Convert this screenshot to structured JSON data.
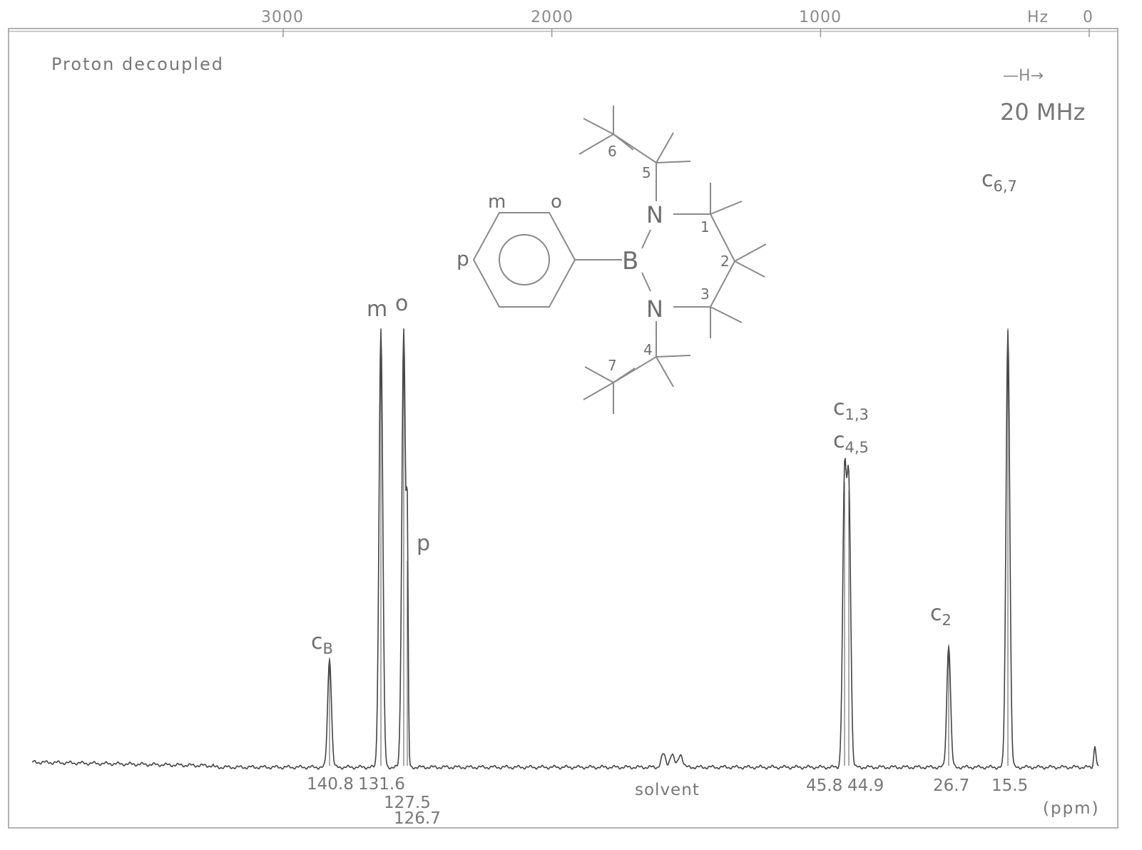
{
  "annotation_left": "Proton decoupled",
  "field_label": "20 MHz",
  "field_arrow": "—H→",
  "solvent_label": "solvent",
  "ppm_unit": "(ppm)",
  "hz_unit": "Hz",
  "chart_data": {
    "type": "line",
    "title": "",
    "top_axis": {
      "label": "Hz",
      "ticks": [
        3000,
        2000,
        1000,
        0
      ],
      "range": [
        3000,
        0
      ]
    },
    "x_unit": "(ppm)",
    "peaks": [
      {
        "name": "C_B",
        "label": "c",
        "sub": "B",
        "ppm": 140.8,
        "ppm_label": "140.8",
        "intensity": 0.25
      },
      {
        "name": "m",
        "label": "m",
        "sub": "",
        "ppm": 131.6,
        "ppm_label": "131.6",
        "intensity": 1.0
      },
      {
        "name": "o",
        "label": "o",
        "sub": "",
        "ppm": 127.5,
        "ppm_label": "127.5",
        "intensity": 1.0
      },
      {
        "name": "p",
        "label": "p",
        "sub": "",
        "ppm": 126.7,
        "ppm_label": "126.7",
        "intensity": 0.47
      },
      {
        "name": "C_1,3",
        "label": "c",
        "sub": "1,3",
        "ppm": 45.8,
        "ppm_label": "45.8",
        "intensity": 0.65
      },
      {
        "name": "C_4,5",
        "label": "c",
        "sub": "4,5",
        "ppm": 44.9,
        "ppm_label": "44.9",
        "intensity": 0.63
      },
      {
        "name": "C_2",
        "label": "c",
        "sub": "2",
        "ppm": 26.7,
        "ppm_label": "26.7",
        "intensity": 0.28
      },
      {
        "name": "C_6,7",
        "label": "c",
        "sub": "6,7",
        "ppm": 15.5,
        "ppm_label": "15.5",
        "intensity": 1.0
      }
    ],
    "structure_labels": {
      "ring_positions": [
        "m",
        "o",
        "p"
      ],
      "atoms": [
        "N",
        "B",
        "N"
      ],
      "numbers": [
        "1",
        "2",
        "3",
        "4",
        "5",
        "6",
        "7"
      ]
    }
  }
}
